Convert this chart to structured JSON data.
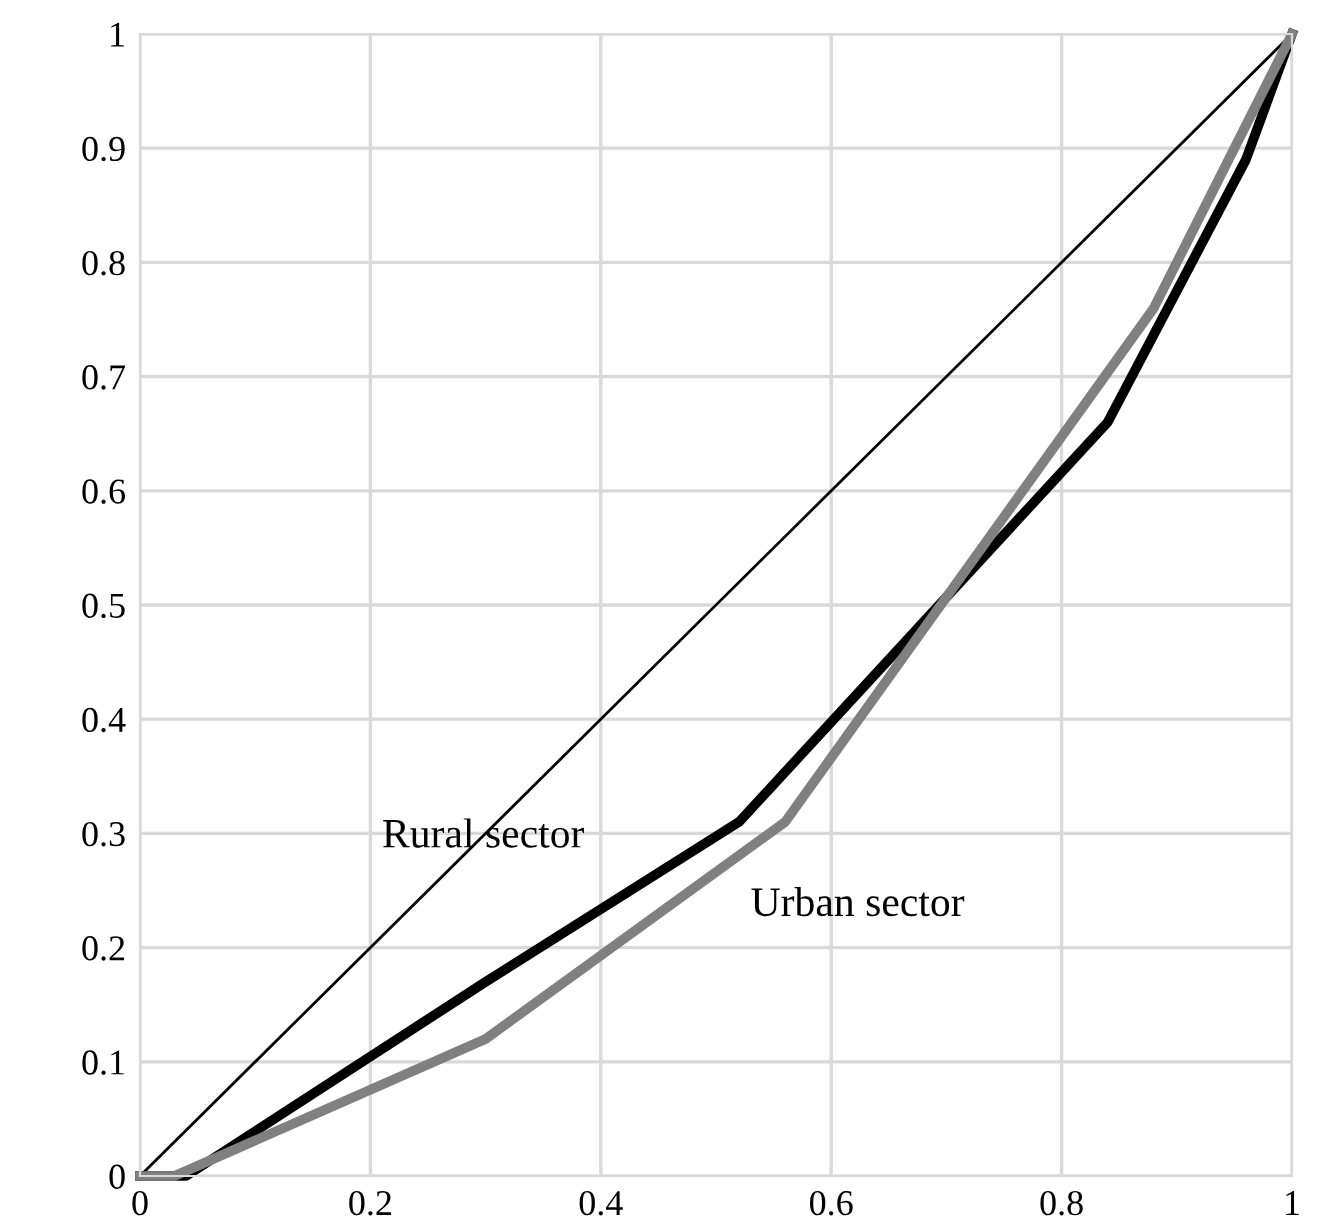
{
  "chart_data": {
    "type": "line",
    "xlim": [
      0,
      1
    ],
    "ylim": [
      0,
      1
    ],
    "xticks": [
      0,
      0.2,
      0.4,
      0.6,
      0.8,
      1
    ],
    "yticks": [
      0,
      0.1,
      0.2,
      0.3,
      0.4,
      0.5,
      0.6,
      0.7,
      0.8,
      0.9,
      1
    ],
    "grid": true,
    "legend": false,
    "marker": "none",
    "line_style": "solid",
    "series": [
      {
        "color": "#000000",
        "x": [
          0,
          1
        ],
        "values": [
          0,
          1
        ]
      },
      {
        "color": "#000000",
        "x": [
          0,
          0.04,
          0.3,
          0.52,
          0.84,
          0.96,
          1
        ],
        "values": [
          0,
          0,
          0.17,
          0.31,
          0.66,
          0.89,
          1
        ]
      },
      {
        "color": "#808080",
        "x": [
          0,
          0.03,
          0.3,
          0.56,
          0.88,
          1
        ],
        "values": [
          0,
          0,
          0.12,
          0.31,
          0.76,
          1
        ]
      }
    ],
    "annotations": [
      "Rural sector",
      "Urban sector"
    ]
  }
}
